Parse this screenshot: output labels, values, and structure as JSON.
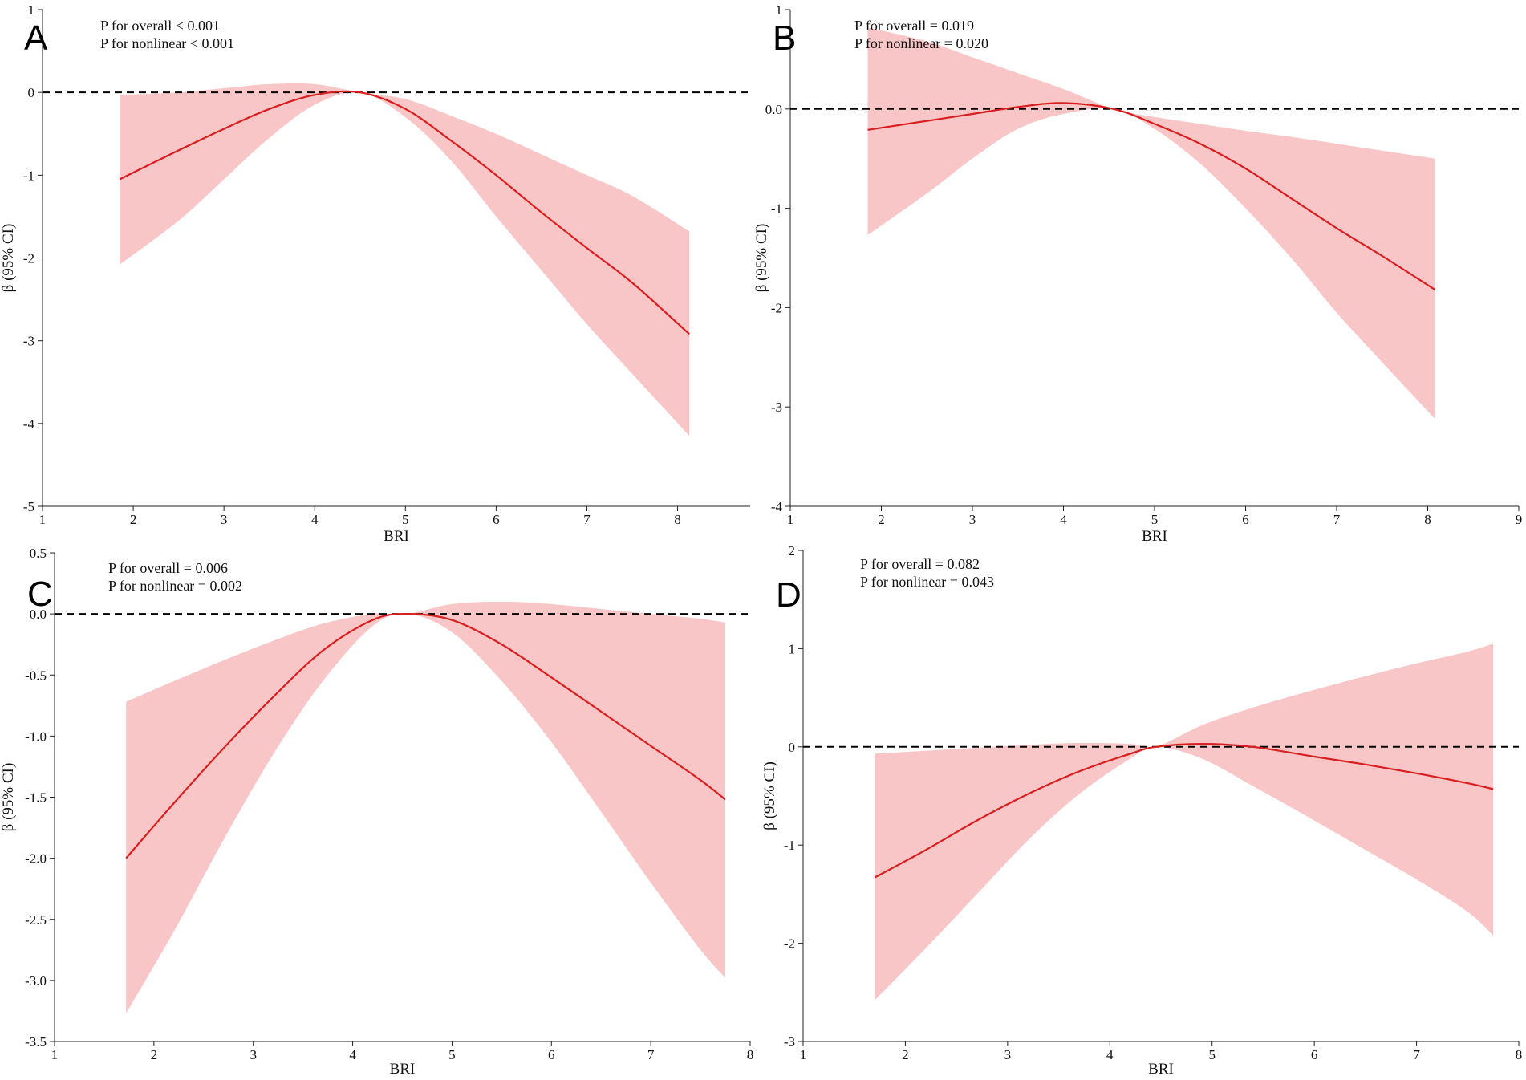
{
  "figure": {
    "description_labels": [
      "A",
      "B",
      "C",
      "D"
    ]
  },
  "chart_data": [
    {
      "panel": "A",
      "type": "line",
      "xlabel": "BRI",
      "ylabel": "β (95% CI)",
      "xlim": [
        1,
        8.8
      ],
      "ylim": [
        -5,
        1
      ],
      "xticks": [
        1,
        2,
        3,
        4,
        5,
        6,
        7,
        8
      ],
      "yticks": [
        -5,
        -4,
        -3,
        -2,
        -1,
        0,
        1
      ],
      "xtick_labels": [
        "1",
        "2",
        "3",
        "4",
        "5",
        "6",
        "7",
        "8"
      ],
      "ytick_labels": [
        "-5",
        "-4",
        "-3",
        "-2",
        "-1",
        "0",
        "1"
      ],
      "reference_y": 0,
      "annotations": [
        "P for overall < 0.001",
        "P for nonlinear < 0.001"
      ],
      "series": [
        {
          "name": "β",
          "x": [
            1.85,
            2.5,
            3.0,
            3.5,
            4.0,
            4.5,
            5.0,
            5.5,
            6.0,
            6.5,
            7.0,
            7.5,
            8.13
          ],
          "y": [
            -1.05,
            -0.7,
            -0.44,
            -0.2,
            -0.03,
            0.0,
            -0.2,
            -0.58,
            -1.0,
            -1.45,
            -1.88,
            -2.3,
            -2.92
          ],
          "lower": [
            -2.08,
            -1.55,
            -1.05,
            -0.55,
            -0.15,
            0.0,
            -0.3,
            -0.82,
            -1.5,
            -2.15,
            -2.8,
            -3.4,
            -4.15
          ],
          "upper": [
            -0.03,
            0.0,
            0.05,
            0.1,
            0.1,
            0.0,
            -0.08,
            -0.28,
            -0.5,
            -0.75,
            -1.0,
            -1.25,
            -1.68
          ]
        }
      ]
    },
    {
      "panel": "B",
      "type": "line",
      "xlabel": "BRI",
      "ylabel": "β (95% CI)",
      "xlim": [
        1,
        9
      ],
      "ylim": [
        -4,
        1
      ],
      "xticks": [
        1,
        2,
        3,
        4,
        5,
        6,
        7,
        8,
        9
      ],
      "yticks": [
        -4,
        -3,
        -2,
        -1,
        0,
        1
      ],
      "xtick_labels": [
        "1",
        "2",
        "3",
        "4",
        "5",
        "6",
        "7",
        "8",
        "9"
      ],
      "ytick_labels": [
        "-4",
        "-3",
        "-2",
        "-1",
        "0.0",
        "1"
      ],
      "reference_y": 0,
      "annotations": [
        "P for overall = 0.019",
        "P for nonlinear = 0.020"
      ],
      "series": [
        {
          "name": "β",
          "x": [
            1.85,
            2.5,
            3.0,
            3.5,
            4.0,
            4.55,
            5.0,
            5.5,
            6.0,
            6.5,
            7.0,
            7.5,
            8.08
          ],
          "y": [
            -0.21,
            -0.12,
            -0.05,
            0.02,
            0.06,
            0.0,
            -0.15,
            -0.35,
            -0.6,
            -0.9,
            -1.2,
            -1.48,
            -1.82
          ],
          "lower": [
            -1.27,
            -0.85,
            -0.5,
            -0.2,
            -0.05,
            0.0,
            -0.2,
            -0.55,
            -1.0,
            -1.5,
            -2.05,
            -2.55,
            -3.12
          ],
          "upper": [
            0.82,
            0.68,
            0.52,
            0.36,
            0.2,
            0.0,
            -0.08,
            -0.15,
            -0.22,
            -0.28,
            -0.35,
            -0.42,
            -0.5
          ]
        }
      ]
    },
    {
      "panel": "C",
      "type": "line",
      "xlabel": "BRI",
      "ylabel": "β (95% CI)",
      "xlim": [
        1,
        8
      ],
      "ylim": [
        -3.5,
        0.5
      ],
      "xticks": [
        1,
        2,
        3,
        4,
        5,
        6,
        7,
        8
      ],
      "yticks": [
        -3.5,
        -3.0,
        -2.5,
        -2.0,
        -1.5,
        -1.0,
        -0.5,
        0.0,
        0.5
      ],
      "xtick_labels": [
        "1",
        "2",
        "3",
        "4",
        "5",
        "6",
        "7",
        "8"
      ],
      "ytick_labels": [
        "-3.5",
        "-3.0",
        "-2.5",
        "-2.0",
        "-1.5",
        "-1.0",
        "-0.5",
        "0.0",
        "0.5"
      ],
      "reference_y": 0,
      "annotations": [
        "P for overall = 0.006",
        "P for nonlinear = 0.002"
      ],
      "series": [
        {
          "name": "β",
          "x": [
            1.72,
            2.2,
            2.7,
            3.2,
            3.7,
            4.2,
            4.55,
            5.0,
            5.5,
            6.0,
            6.5,
            7.0,
            7.5,
            7.75
          ],
          "y": [
            -2.0,
            -1.55,
            -1.1,
            -0.68,
            -0.3,
            -0.05,
            0.0,
            -0.05,
            -0.25,
            -0.52,
            -0.8,
            -1.08,
            -1.36,
            -1.52
          ],
          "lower": [
            -3.27,
            -2.6,
            -1.85,
            -1.15,
            -0.55,
            -0.1,
            0.0,
            -0.15,
            -0.55,
            -1.05,
            -1.62,
            -2.2,
            -2.75,
            -2.98
          ],
          "upper": [
            -0.72,
            -0.55,
            -0.38,
            -0.22,
            -0.08,
            0.0,
            0.0,
            0.08,
            0.1,
            0.08,
            0.04,
            0.0,
            -0.04,
            -0.07
          ]
        }
      ]
    },
    {
      "panel": "D",
      "type": "line",
      "xlabel": "BRI",
      "ylabel": "β (95% CI)",
      "xlim": [
        1,
        8
      ],
      "ylim": [
        -3,
        2
      ],
      "xticks": [
        1,
        2,
        3,
        4,
        5,
        6,
        7,
        8
      ],
      "yticks": [
        -3,
        -2,
        -1,
        0,
        1,
        2
      ],
      "xtick_labels": [
        "1",
        "2",
        "3",
        "4",
        "5",
        "6",
        "7",
        "8"
      ],
      "ytick_labels": [
        "-3",
        "-2",
        "-1",
        "0",
        "1",
        "2"
      ],
      "reference_y": 0,
      "annotations": [
        "P for overall = 0.082",
        "P for nonlinear = 0.043"
      ],
      "series": [
        {
          "name": "β",
          "x": [
            1.7,
            2.2,
            2.7,
            3.2,
            3.7,
            4.2,
            4.45,
            4.9,
            5.4,
            6.0,
            6.5,
            7.0,
            7.5,
            7.75
          ],
          "y": [
            -1.33,
            -1.05,
            -0.75,
            -0.48,
            -0.25,
            -0.07,
            0.0,
            0.03,
            0.0,
            -0.1,
            -0.18,
            -0.27,
            -0.37,
            -0.43
          ],
          "lower": [
            -2.58,
            -2.05,
            -1.5,
            -0.95,
            -0.48,
            -0.12,
            0.0,
            -0.12,
            -0.4,
            -0.75,
            -1.05,
            -1.35,
            -1.68,
            -1.92
          ],
          "upper": [
            -0.07,
            -0.04,
            -0.01,
            0.02,
            0.04,
            0.03,
            0.0,
            0.22,
            0.4,
            0.58,
            0.72,
            0.85,
            0.97,
            1.05
          ]
        }
      ]
    }
  ]
}
